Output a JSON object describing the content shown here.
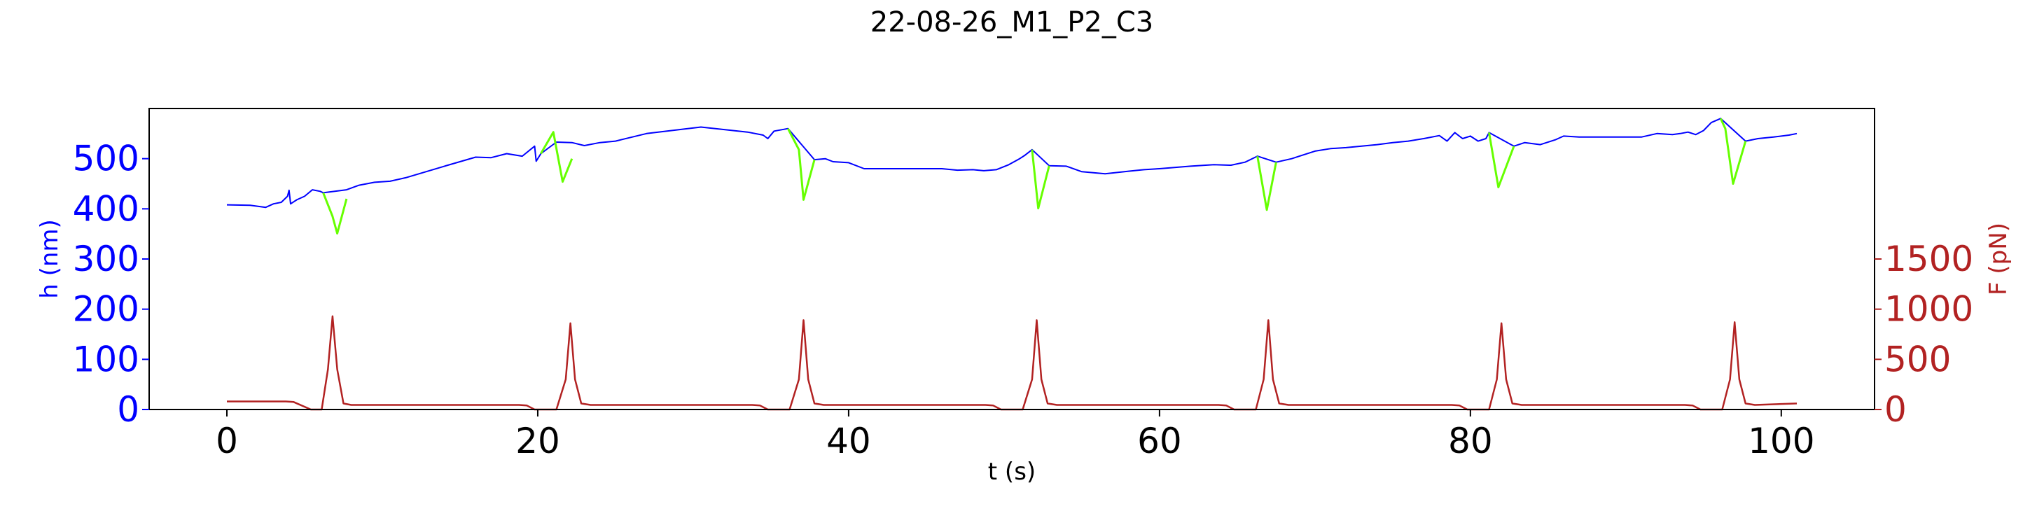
{
  "chart_data": {
    "type": "line",
    "title": "22-08-26_M1_P2_C3",
    "xlabel": "t (s)",
    "ylabel_left": "h (nm)",
    "ylabel_right": "F (pN)",
    "xlim": [
      -5,
      106
    ],
    "ylim_left": [
      0,
      600
    ],
    "ylim_right": [
      0,
      3000
    ],
    "xticks": [
      "0",
      "20",
      "40",
      "60",
      "80",
      "100"
    ],
    "xtick_values": [
      0,
      20,
      40,
      60,
      80,
      100
    ],
    "yticks_left": [
      "0",
      "100",
      "200",
      "300",
      "400",
      "500"
    ],
    "ytick_values_left": [
      0,
      100,
      200,
      300,
      400,
      500
    ],
    "yticks_right": [
      "0",
      "500",
      "1000",
      "1500"
    ],
    "ytick_values_right": [
      0,
      500,
      1000,
      1500
    ],
    "grid": false,
    "colors": {
      "height": "#0000ff",
      "height_highlight": "#66ff00",
      "force": "#b22222",
      "left_axis": "#0000ff",
      "right_axis": "#b22222"
    },
    "series": [
      {
        "axis": "left",
        "x": [
          0,
          1.5,
          2.5,
          3,
          3.5,
          3.9,
          4,
          4.1,
          4.5,
          5,
          5.5,
          6,
          6.2,
          7.7,
          8.5,
          9.5,
          10.5,
          11.5,
          14,
          16,
          17,
          18,
          19,
          19.8,
          19.9,
          20.2,
          21.2,
          22.2,
          23,
          24,
          25,
          27,
          30.5,
          32,
          33.5,
          34.5,
          34.8,
          35.2,
          36.1,
          37.8,
          38.5,
          39,
          40,
          41,
          43,
          45,
          46,
          47,
          48,
          48.7,
          49.5,
          50.3,
          51,
          51.3,
          51.8,
          52.9,
          54,
          55,
          56.5,
          58,
          59,
          60,
          62,
          63.5,
          64.5,
          64.6,
          65.5,
          66.3,
          67.5,
          68.5,
          69,
          70,
          71,
          72,
          73,
          74,
          75,
          76,
          77,
          78,
          78.5,
          79,
          79.5,
          80,
          80.5,
          81,
          81.2,
          82.8,
          83.5,
          84.5,
          85.5,
          86,
          87,
          88,
          89,
          90,
          91,
          92,
          93,
          93.5,
          94,
          94.5,
          95,
          95.5,
          96.1,
          97.7,
          98.5,
          99.5,
          100.5,
          101
        ],
        "y": [
          408,
          407,
          403,
          410,
          413,
          425,
          437,
          410,
          418,
          425,
          438,
          435,
          432,
          438,
          447,
          453,
          455,
          462,
          485,
          503,
          502,
          510,
          505,
          525,
          495,
          510,
          533,
          532,
          526,
          532,
          535,
          550,
          563,
          558,
          553,
          547,
          540,
          555,
          560,
          498,
          500,
          494,
          492,
          480,
          480,
          480,
          480,
          477,
          478,
          476,
          478,
          488,
          500,
          506,
          518,
          486,
          485,
          474,
          470,
          475,
          478,
          480,
          485,
          488,
          487,
          487,
          493,
          505,
          493,
          500,
          505,
          515,
          520,
          522,
          525,
          528,
          532,
          535,
          540,
          546,
          535,
          552,
          540,
          545,
          535,
          540,
          552,
          525,
          532,
          528,
          538,
          545,
          543,
          543,
          543,
          543,
          543,
          550,
          548,
          550,
          553,
          548,
          556,
          572,
          580,
          535,
          540,
          543,
          547,
          550
        ]
      },
      {
        "axis": "left",
        "x": [
          6.2,
          6.8,
          7.1,
          7.7
        ],
        "y": [
          432,
          385,
          351,
          420
        ]
      },
      {
        "axis": "left",
        "x": [
          20.2,
          21,
          21.6,
          22.2
        ],
        "y": [
          510,
          553,
          454,
          500
        ]
      },
      {
        "axis": "left",
        "x": [
          36.1,
          36.8,
          37.1,
          37.8
        ],
        "y": [
          560,
          518,
          418,
          498
        ]
      },
      {
        "axis": "left",
        "x": [
          51.8,
          52.2,
          52.9
        ],
        "y": [
          518,
          401,
          486
        ]
      },
      {
        "axis": "left",
        "x": [
          66.3,
          66.9,
          67.5
        ],
        "y": [
          505,
          398,
          493
        ]
      },
      {
        "axis": "left",
        "x": [
          81.2,
          81.8,
          82.8
        ],
        "y": [
          552,
          443,
          525
        ]
      },
      {
        "axis": "left",
        "x": [
          96.1,
          96.4,
          96.9,
          97.7
        ],
        "y": [
          580,
          560,
          450,
          535
        ]
      },
      {
        "axis": "right",
        "x": [
          0,
          3.8,
          4.3,
          5.4,
          6.1,
          6.5,
          6.8,
          7.1,
          7.5,
          8,
          18.8,
          19.3,
          19.8,
          21.2,
          21.8,
          22.1,
          22.4,
          22.8,
          23.4,
          33.8,
          34.3,
          34.8,
          36.2,
          36.8,
          37.1,
          37.4,
          37.8,
          38.4,
          48.8,
          49.3,
          49.8,
          51.2,
          51.8,
          52.1,
          52.4,
          52.8,
          53.4,
          63.8,
          64.3,
          64.8,
          66.2,
          66.7,
          67,
          67.3,
          67.7,
          68.3,
          78.8,
          79.3,
          79.8,
          81.2,
          81.7,
          82,
          82.3,
          82.7,
          83.3,
          93.8,
          94.3,
          94.8,
          96.2,
          96.7,
          97,
          97.3,
          97.7,
          98.3,
          101
        ],
        "y": [
          80,
          80,
          75,
          0,
          0,
          400,
          930,
          400,
          60,
          45,
          45,
          40,
          0,
          0,
          300,
          860,
          300,
          60,
          45,
          45,
          40,
          0,
          0,
          300,
          890,
          300,
          60,
          45,
          45,
          40,
          0,
          0,
          300,
          890,
          300,
          60,
          45,
          45,
          40,
          0,
          0,
          300,
          890,
          300,
          60,
          45,
          45,
          40,
          0,
          0,
          300,
          860,
          300,
          60,
          45,
          45,
          40,
          0,
          0,
          300,
          870,
          300,
          60,
          45,
          60
        ]
      }
    ]
  }
}
